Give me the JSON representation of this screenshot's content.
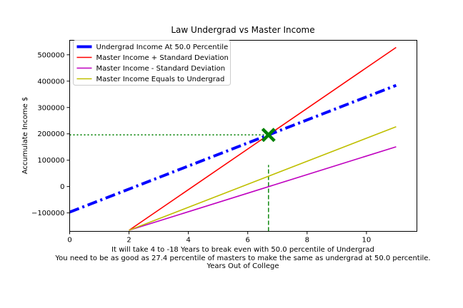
{
  "chart_data": {
    "type": "line",
    "title": "Law Undergrad vs Master Income",
    "ylabel": "Accumulate Income $",
    "xlabel_lines": [
      "It will take 4 to -18 Years to break even with 50.0 percentile of Undergrad",
      "You need to be as good as 27.4 percentile of masters to make the same as undergrad at 50.0 percentile.",
      "Years Out of College"
    ],
    "xlim": [
      0,
      11.7
    ],
    "ylim": [
      -170000,
      555000
    ],
    "xticks": [
      0,
      2,
      4,
      6,
      8,
      10
    ],
    "xtick_labels": [
      "0",
      "2",
      "4",
      "6",
      "8",
      "10"
    ],
    "yticks": [
      -100000,
      0,
      100000,
      200000,
      300000,
      400000,
      500000
    ],
    "ytick_labels": [
      "−100000",
      "0",
      "100000",
      "200000",
      "300000",
      "400000",
      "500000"
    ],
    "grid": false,
    "legend_position": "upper-left",
    "series": [
      {
        "name": "Undergrad Income At 50.0 Percentile",
        "color": "#0000ff",
        "style": "dashdot",
        "x": [
          0,
          11
        ],
        "y": [
          -97000,
          384000
        ]
      },
      {
        "name": "Master Income + Standard Deviation",
        "color": "#ff0000",
        "style": "solid",
        "x": [
          2,
          11
        ],
        "y": [
          -166000,
          528000
        ]
      },
      {
        "name": "Master Income - Standard Deviation",
        "color": "#bf00bf",
        "style": "solid",
        "x": [
          2,
          11
        ],
        "y": [
          -166000,
          151000
        ]
      },
      {
        "name": "Master Income Equals to Undergrad",
        "color": "#bfbf00",
        "style": "solid",
        "x": [
          2,
          11
        ],
        "y": [
          -166000,
          227000
        ]
      }
    ],
    "annotations": {
      "break_even_marker": {
        "x": 6.7,
        "y": 196000,
        "color": "#008000",
        "marker": "X"
      },
      "horizontal_guide": {
        "x_from": 0,
        "x_to": 6.7,
        "y": 196000,
        "color": "#008000",
        "style": "dotted"
      },
      "vertical_guide": {
        "x": 6.7,
        "y_from": -170000,
        "y_to": 82000,
        "color": "#008000",
        "style": "dashed"
      }
    }
  }
}
